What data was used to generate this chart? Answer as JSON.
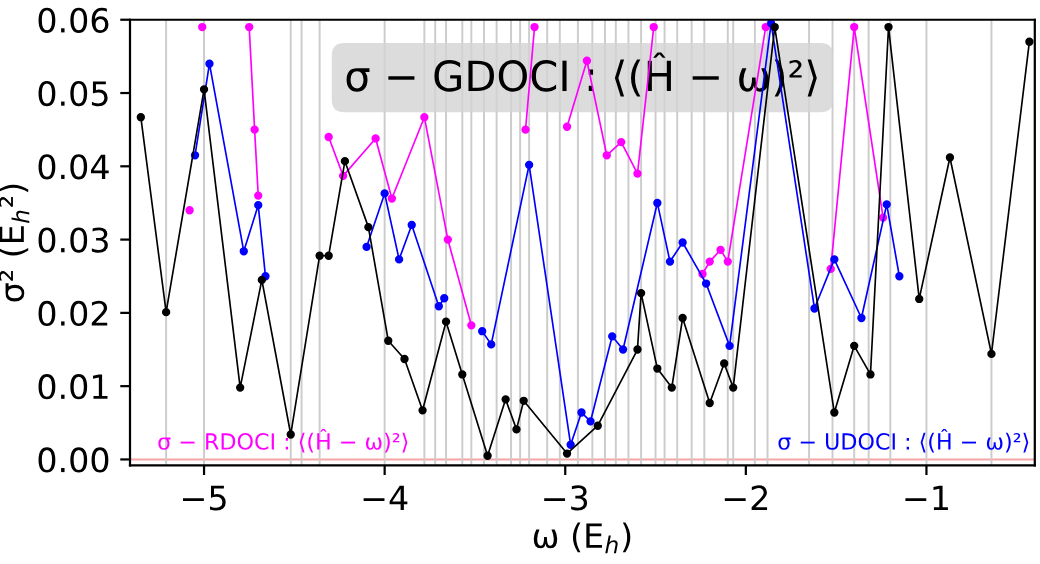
{
  "chart_data": {
    "type": "line",
    "title": "σ − GDOCI : ⟨(Ĥ − ω)²⟩",
    "xlabel": "ω (E$_{h}$)",
    "ylabel": "σ² (E$_{h}$²)",
    "annotations": [
      "σ − RDOCI : ⟨(Ĥ − ω)²⟩",
      "σ − UDOCI : ⟨(Ĥ − ω)²⟩"
    ],
    "marker": "circle",
    "line_style": "solid",
    "grid": false,
    "legend": false,
    "xlim": [
      -5.41,
      -0.4
    ],
    "ylim": [
      -0.0008,
      0.06
    ],
    "xticks": [
      {
        "value": -5,
        "label": "−5"
      },
      {
        "value": -4,
        "label": "−4"
      },
      {
        "value": -3,
        "label": "−3"
      },
      {
        "value": -2,
        "label": "−2"
      },
      {
        "value": -1,
        "label": "−1"
      }
    ],
    "yticks": [
      {
        "value": 0,
        "label": "0.00"
      },
      {
        "value": 0.01,
        "label": "0.01"
      },
      {
        "value": 0.02,
        "label": "0.02"
      },
      {
        "value": 0.03,
        "label": "0.03"
      },
      {
        "value": 0.04,
        "label": "0.04"
      },
      {
        "value": 0.05,
        "label": "0.05"
      },
      {
        "value": 0.06,
        "label": "0.06"
      }
    ],
    "series": [
      {
        "color": "#ff00ff",
        "x": [
          -5.08,
          -5.05,
          -5.01,
          -4.9,
          -4.75,
          -4.72,
          -4.7,
          -4.4,
          -4.31,
          -4.23,
          -4.05,
          -3.96,
          -3.78,
          -3.65,
          -3.52,
          -3.35,
          -3.22,
          -3.17,
          -3.1,
          -2.99,
          -2.88,
          -2.77,
          -2.69,
          -2.6,
          -2.51,
          -2.4,
          -2.24,
          -2.2,
          -2.14,
          -2.1,
          -1.89,
          -1.7,
          -1.53,
          -1.4,
          -1.24
        ],
        "values": [
          0.034,
          null,
          0.059,
          null,
          0.059,
          0.045,
          0.036,
          null,
          0.044,
          0.0387,
          0.0438,
          0.0356,
          0.0467,
          0.03,
          0.0183,
          null,
          0.045,
          0.059,
          null,
          0.0454,
          0.0544,
          0.0415,
          0.0433,
          0.039,
          0.059,
          null,
          0.0253,
          0.027,
          0.0286,
          0.027,
          0.059,
          null,
          0.026,
          0.059,
          0.033
        ]
      },
      {
        "color": "#0000ff",
        "x": [
          -5.05,
          -4.97,
          -4.78,
          -4.7,
          -4.66,
          -4.6,
          -4.1,
          -4.0,
          -3.92,
          -3.85,
          -3.7,
          -3.67,
          -3.57,
          -3.46,
          -3.41,
          -3.2,
          -2.97,
          -2.91,
          -2.86,
          -2.74,
          -2.68,
          -2.49,
          -2.42,
          -2.35,
          -2.22,
          -2.09,
          -1.86,
          -1.62,
          -1.51,
          -1.36,
          -1.22,
          -1.15
        ],
        "values": [
          0.0415,
          0.054,
          0.0284,
          0.0347,
          0.025,
          null,
          0.029,
          0.0363,
          0.0273,
          0.032,
          0.0209,
          0.022,
          null,
          0.0175,
          0.0157,
          0.0402,
          0.002,
          0.0064,
          0.0052,
          0.0168,
          0.015,
          0.035,
          0.027,
          0.0296,
          0.024,
          0.0155,
          0.0595,
          0.0206,
          0.0273,
          0.0193,
          0.0348,
          0.025
        ]
      },
      {
        "color": "#000000",
        "x": [
          -5.35,
          -5.21,
          -5.0,
          -4.8,
          -4.68,
          -4.52,
          -4.36,
          -4.31,
          -4.22,
          -4.09,
          -3.98,
          -3.89,
          -3.79,
          -3.66,
          -3.57,
          -3.43,
          -3.33,
          -3.27,
          -3.23,
          -2.99,
          -2.82,
          -2.6,
          -2.58,
          -2.49,
          -2.41,
          -2.35,
          -2.2,
          -2.12,
          -2.07,
          -1.84,
          -1.51,
          -1.4,
          -1.31,
          -1.21,
          -1.04,
          -0.87,
          -0.64,
          -0.43
        ],
        "values": [
          0.0467,
          0.0201,
          0.0505,
          0.0098,
          0.0245,
          0.0034,
          0.0278,
          0.0278,
          0.0407,
          0.0317,
          0.0162,
          0.0137,
          0.0067,
          0.0188,
          0.0116,
          0.0005,
          0.0082,
          0.0041,
          0.008,
          0.0008,
          0.0046,
          0.015,
          0.0227,
          0.0124,
          0.0098,
          0.0193,
          0.0077,
          0.0131,
          0.0098,
          0.059,
          0.0064,
          0.0155,
          0.0116,
          0.059,
          0.0219,
          0.0412,
          0.0144,
          0.057
        ]
      }
    ],
    "ref_lines": [
      {
        "axis": "y",
        "value": 0,
        "color": "#f4a6a6"
      },
      {
        "axis": "x",
        "value": -5.21,
        "color": "#cccccc"
      },
      {
        "axis": "x",
        "value": -5.0,
        "color": "#cccccc"
      },
      {
        "axis": "x",
        "value": -4.52,
        "color": "#cccccc"
      },
      {
        "axis": "x",
        "value": -4.46,
        "color": "#cccccc"
      },
      {
        "axis": "x",
        "value": -4.36,
        "color": "#cccccc"
      },
      {
        "axis": "x",
        "value": -4.0,
        "color": "#cccccc"
      },
      {
        "axis": "x",
        "value": -3.78,
        "color": "#cccccc"
      },
      {
        "axis": "x",
        "value": -3.72,
        "color": "#cccccc"
      },
      {
        "axis": "x",
        "value": -3.66,
        "color": "#cccccc"
      },
      {
        "axis": "x",
        "value": -3.57,
        "color": "#cccccc"
      },
      {
        "axis": "x",
        "value": -3.52,
        "color": "#cccccc"
      },
      {
        "axis": "x",
        "value": -3.45,
        "color": "#cccccc"
      },
      {
        "axis": "x",
        "value": -3.38,
        "color": "#cccccc"
      },
      {
        "axis": "x",
        "value": -3.3,
        "color": "#cccccc"
      },
      {
        "axis": "x",
        "value": -3.25,
        "color": "#cccccc"
      },
      {
        "axis": "x",
        "value": -3.2,
        "color": "#cccccc"
      },
      {
        "axis": "x",
        "value": -3.1,
        "color": "#cccccc"
      },
      {
        "axis": "x",
        "value": -3.03,
        "color": "#cccccc"
      },
      {
        "axis": "x",
        "value": -2.93,
        "color": "#cccccc"
      },
      {
        "axis": "x",
        "value": -2.85,
        "color": "#cccccc"
      },
      {
        "axis": "x",
        "value": -2.78,
        "color": "#cccccc"
      },
      {
        "axis": "x",
        "value": -2.72,
        "color": "#cccccc"
      },
      {
        "axis": "x",
        "value": -2.65,
        "color": "#cccccc"
      },
      {
        "axis": "x",
        "value": -2.58,
        "color": "#cccccc"
      },
      {
        "axis": "x",
        "value": -2.5,
        "color": "#cccccc"
      },
      {
        "axis": "x",
        "value": -2.45,
        "color": "#cccccc"
      },
      {
        "axis": "x",
        "value": -2.38,
        "color": "#cccccc"
      },
      {
        "axis": "x",
        "value": -2.3,
        "color": "#cccccc"
      },
      {
        "axis": "x",
        "value": -2.23,
        "color": "#cccccc"
      },
      {
        "axis": "x",
        "value": -2.1,
        "color": "#cccccc"
      },
      {
        "axis": "x",
        "value": -2.07,
        "color": "#cccccc"
      },
      {
        "axis": "x",
        "value": -1.95,
        "color": "#cccccc"
      },
      {
        "axis": "x",
        "value": -1.88,
        "color": "#cccccc"
      },
      {
        "axis": "x",
        "value": -1.65,
        "color": "#cccccc"
      },
      {
        "axis": "x",
        "value": -1.52,
        "color": "#cccccc"
      },
      {
        "axis": "x",
        "value": -1.4,
        "color": "#cccccc"
      },
      {
        "axis": "x",
        "value": -1.32,
        "color": "#cccccc"
      },
      {
        "axis": "x",
        "value": -1.2,
        "color": "#cccccc"
      },
      {
        "axis": "x",
        "value": -1.0,
        "color": "#cccccc"
      },
      {
        "axis": "x",
        "value": -0.64,
        "color": "#cccccc"
      }
    ]
  }
}
